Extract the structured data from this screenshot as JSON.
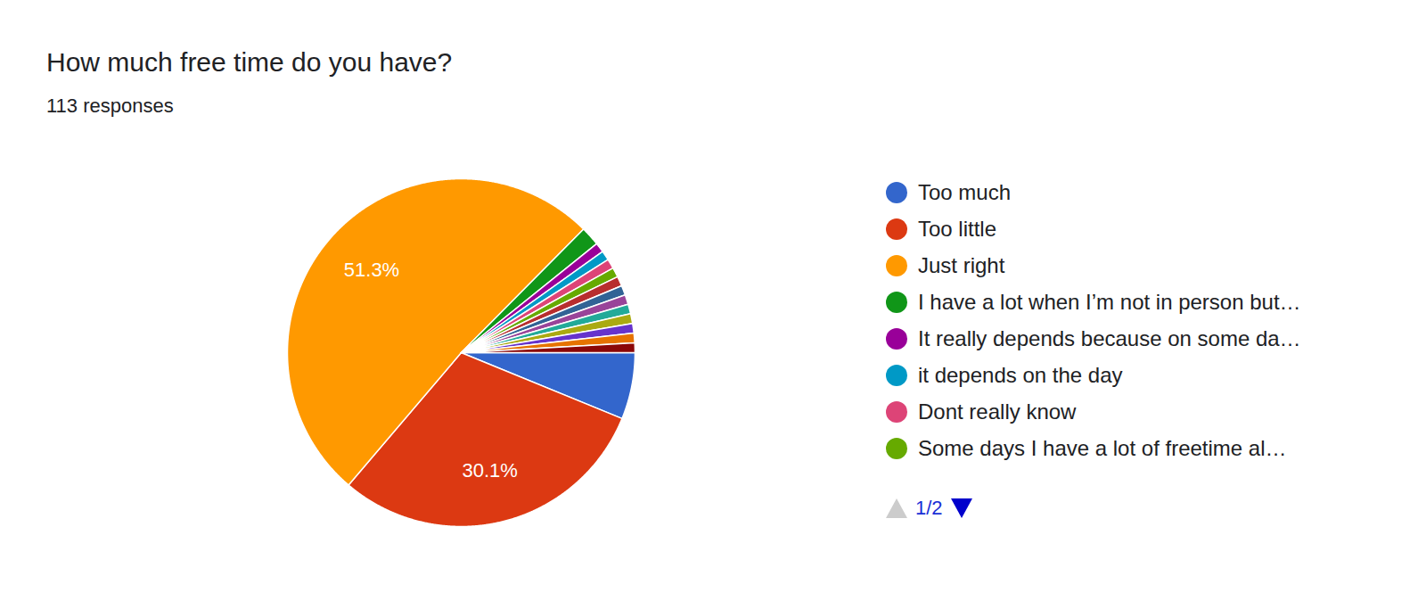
{
  "chart_data": {
    "type": "pie",
    "title": "How much free time do you have?",
    "subtitle": "113 responses",
    "categories": [
      "Too much",
      "Too little",
      "Just right",
      "I have a lot when I’m not in person but…",
      "It really depends because on some da…",
      "it depends on the day",
      "Dont really know",
      "Some days I have a lot of freetime al…",
      null,
      null,
      null,
      null,
      null,
      null,
      null,
      null
    ],
    "values": [
      6.2,
      30.1,
      51.3,
      1.8,
      0.9,
      0.9,
      0.9,
      0.9,
      0.9,
      0.9,
      0.9,
      0.9,
      0.9,
      0.9,
      0.9,
      0.9
    ],
    "value_labels": [
      null,
      "30.1%",
      "51.3%",
      null,
      null,
      null,
      null,
      null,
      null,
      null,
      null,
      null,
      null,
      null,
      null,
      null
    ],
    "colors": [
      "#3366cc",
      "#dc3912",
      "#ff9900",
      "#109618",
      "#990099",
      "#0099c6",
      "#dd4477",
      "#66aa00",
      "#b82e2e",
      "#316395",
      "#994499",
      "#22aa99",
      "#aaaa11",
      "#6633cc",
      "#e67300",
      "#8b0707"
    ],
    "data_labels": true,
    "legend": "right",
    "annotations": [
      "1/2"
    ]
  }
}
